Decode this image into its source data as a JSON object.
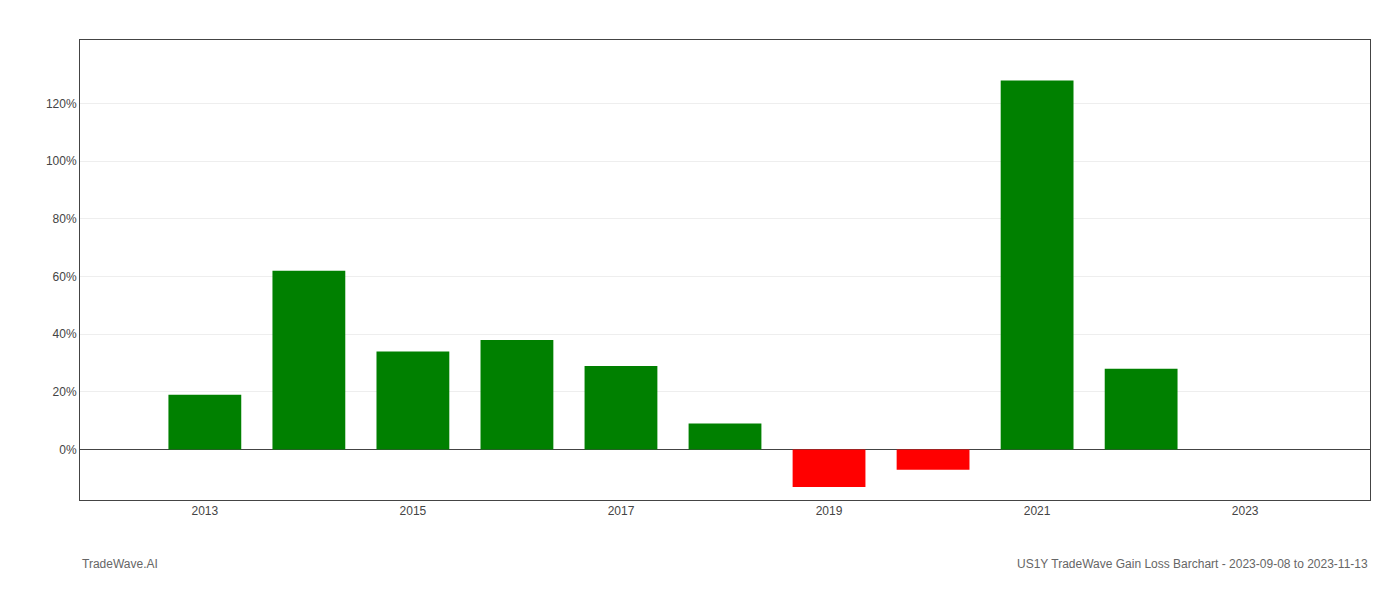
{
  "chart_data": {
    "type": "bar",
    "x": [
      2013,
      2014,
      2015,
      2016,
      2017,
      2018,
      2019,
      2020,
      2021,
      2022
    ],
    "values": [
      0.19,
      0.62,
      0.34,
      0.38,
      0.29,
      0.09,
      -0.13,
      -0.07,
      1.28,
      0.28
    ],
    "colors": [
      "#008000",
      "#008000",
      "#008000",
      "#008000",
      "#008000",
      "#008000",
      "#ff0000",
      "#ff0000",
      "#008000",
      "#008000"
    ],
    "xlim": [
      2011.8,
      2024.2
    ],
    "xticks": [
      2013,
      2015,
      2017,
      2019,
      2021,
      2023
    ],
    "ylim": [
      -0.175,
      1.42
    ],
    "yticks": [
      {
        "value": 0.0,
        "label": "0%"
      },
      {
        "value": 0.2,
        "label": "20%"
      },
      {
        "value": 0.4,
        "label": "40%"
      },
      {
        "value": 0.6,
        "label": "60%"
      },
      {
        "value": 0.8,
        "label": "80%"
      },
      {
        "value": 1.0,
        "label": "100%"
      },
      {
        "value": 1.2,
        "label": "120%"
      }
    ],
    "grid": "y",
    "annotations": [
      "TradeWave.AI",
      "US1Y TradeWave Gain Loss Barchart - 2023-09-08 to 2023-11-13"
    ]
  }
}
